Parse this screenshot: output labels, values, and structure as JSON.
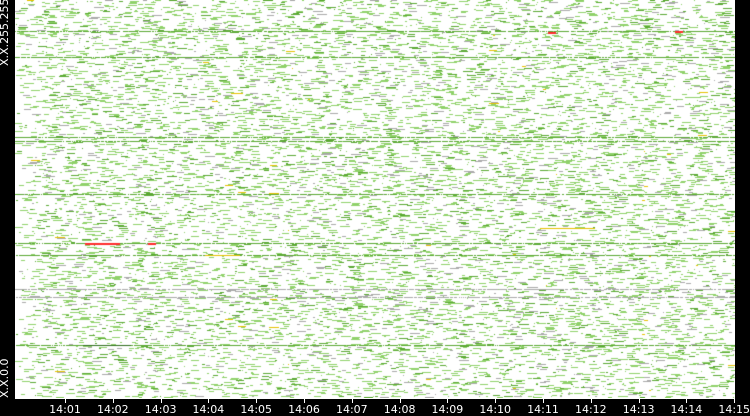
{
  "chart_data": {
    "type": "heatmap",
    "ylabel_top": "X.X.255.255",
    "ylabel_bottom": "X.X.0.0",
    "x_tick_labels": [
      "14:01",
      "14:02",
      "14:03",
      "14:04",
      "14:05",
      "14:06",
      "14:07",
      "14:08",
      "14:09",
      "14:10",
      "14:11",
      "14:12",
      "14:13",
      "14:14",
      "14:15"
    ],
    "xlim": [
      "14:00",
      "14:15"
    ],
    "colors": {
      "low": "#8fd16a",
      "medium": "#5aa832",
      "high": "#e6c200",
      "highest": "#ff2a2a",
      "gray": "#a8a8a8",
      "background": "#ffffff",
      "frame": "#000000"
    }
  }
}
